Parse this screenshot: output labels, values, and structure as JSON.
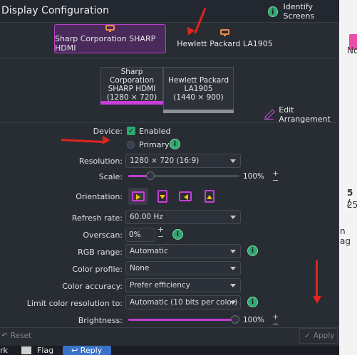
{
  "window": {
    "title": "Display Configuration",
    "identify_label": "Identify Screens"
  },
  "tabs": [
    {
      "label": "Sharp Corporation SHARP HDMI",
      "active": true
    },
    {
      "label": "Hewlett Packard LA1905",
      "active": false
    }
  ],
  "arrangement": {
    "monitor_a": {
      "line1": "Sharp Corporation",
      "line2": "SHARP HDMI",
      "line3": "(1280 × 720)"
    },
    "monitor_b": {
      "line1": "Hewlett Packard",
      "line2": "LA1905",
      "line3": "(1440 × 900)"
    },
    "edit_label": "Edit Arrangement"
  },
  "form": {
    "device_label": "Device:",
    "enabled_label": "Enabled",
    "primary_label": "Primary",
    "resolution_label": "Resolution:",
    "resolution_value": "1280 × 720 (16:9)",
    "scale_label": "Scale:",
    "scale_value": "100%",
    "scale_level": 0.2,
    "orientation_label": "Orientation:",
    "refresh_label": "Refresh rate:",
    "refresh_value": "60.00 Hz",
    "overscan_label": "Overscan:",
    "overscan_value": "0%",
    "rgb_label": "RGB range:",
    "rgb_value": "Automatic",
    "profile_label": "Color profile:",
    "profile_value": "None",
    "accuracy_label": "Color accuracy:",
    "accuracy_value": "Prefer efficiency",
    "limit_label": "Limit color resolution to:",
    "limit_value": "Automatic (10 bits per color)",
    "brightness_label": "Brightness:",
    "brightness_value": "100%",
    "brightness_level": 1.0
  },
  "footer": {
    "reset_label": "Reset",
    "apply_label": "Apply"
  },
  "bottom_bar": {
    "item1": "rk",
    "flag_label": "Flag",
    "reply_label": "Reply"
  },
  "background_page": {
    "t1": "No",
    "t2": "5 /",
    "t3": "25",
    "t4": "n ag"
  },
  "colors": {
    "accent": "#c83ed8",
    "info": "#2ea86f",
    "annotation": "#e0251e"
  }
}
